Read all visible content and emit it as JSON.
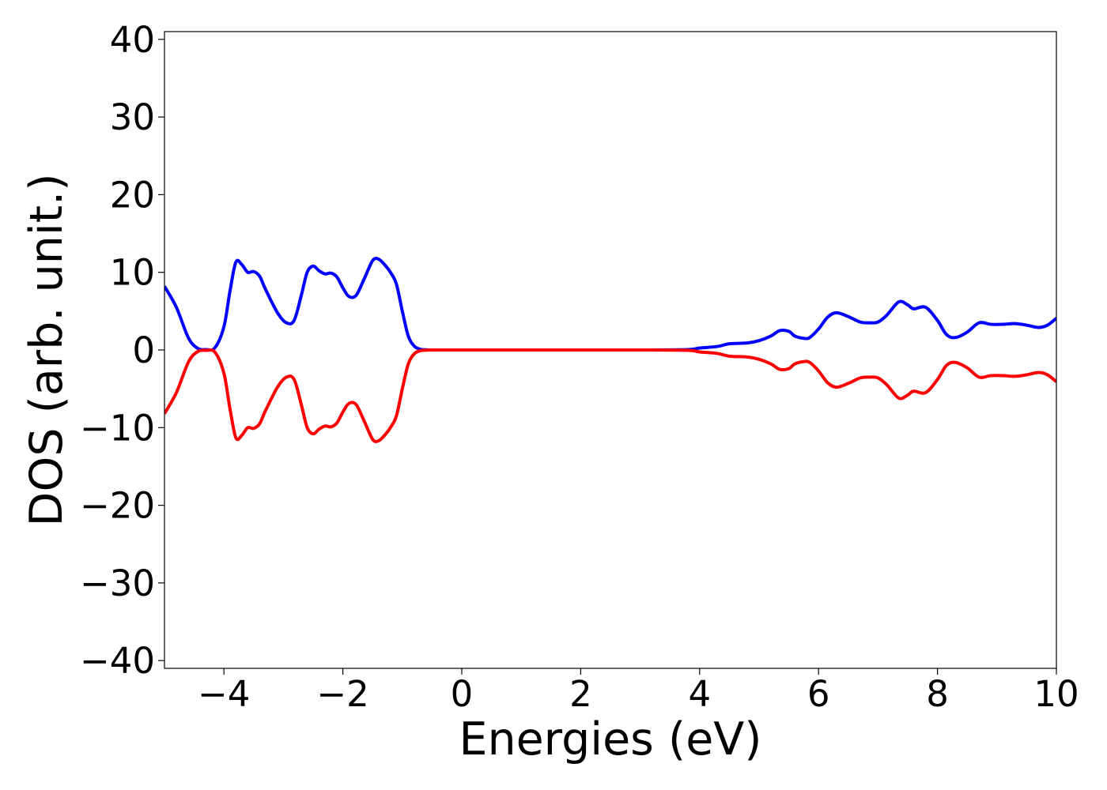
{
  "chart_data": {
    "type": "line",
    "title": "",
    "xlabel": "Energies (eV)",
    "ylabel": "DOS (arb. unit.)",
    "xlim": [
      -5,
      10
    ],
    "ylim": [
      -41,
      41
    ],
    "xticks": [
      -4,
      -2,
      0,
      2,
      4,
      6,
      8,
      10
    ],
    "xtick_labels": [
      "−4",
      "−2",
      "0",
      "2",
      "4",
      "6",
      "8",
      "10"
    ],
    "yticks": [
      -40,
      -30,
      -20,
      -10,
      0,
      10,
      20,
      30,
      40
    ],
    "ytick_labels": [
      "−40",
      "−30",
      "−20",
      "−10",
      "0",
      "10",
      "20",
      "30",
      "40"
    ],
    "grid": false,
    "series": [
      {
        "color": "#0000ff",
        "x": [
          -5,
          -4.8,
          -4.6,
          -4.45,
          -4.3,
          -4.15,
          -4.0,
          -3.9,
          -3.8,
          -3.7,
          -3.6,
          -3.5,
          -3.4,
          -3.3,
          -3.1,
          -2.95,
          -2.82,
          -2.7,
          -2.6,
          -2.5,
          -2.4,
          -2.3,
          -2.2,
          -2.1,
          -2.0,
          -1.9,
          -1.78,
          -1.65,
          -1.5,
          -1.4,
          -1.3,
          -1.2,
          -1.1,
          -1.0,
          -0.9,
          -0.8,
          -0.7,
          -0.6,
          -0.5,
          0,
          1,
          2,
          3,
          3.8,
          4.0,
          4.3,
          4.5,
          4.8,
          5.0,
          5.2,
          5.35,
          5.5,
          5.6,
          5.75,
          5.85,
          6.0,
          6.15,
          6.3,
          6.5,
          6.7,
          6.85,
          7.0,
          7.15,
          7.35,
          7.5,
          7.6,
          7.8,
          8.0,
          8.15,
          8.3,
          8.5,
          8.7,
          8.9,
          9.1,
          9.3,
          9.5,
          9.7,
          9.85,
          10.0
        ],
        "values": [
          8.2,
          5.5,
          1.6,
          0.25,
          0.05,
          0.3,
          3.0,
          7.5,
          11.3,
          11.0,
          10.0,
          10.1,
          9.5,
          7.8,
          4.8,
          3.5,
          3.8,
          7.0,
          10.0,
          10.8,
          10.2,
          9.8,
          9.9,
          9.4,
          8.0,
          6.9,
          7.0,
          9.0,
          11.5,
          11.7,
          11.0,
          10.0,
          8.5,
          5.0,
          1.8,
          0.5,
          0.1,
          0.03,
          0,
          0,
          0,
          0,
          0,
          0.05,
          0.25,
          0.45,
          0.8,
          0.9,
          1.2,
          1.8,
          2.5,
          2.4,
          1.8,
          1.5,
          1.6,
          2.7,
          4.2,
          4.8,
          4.3,
          3.6,
          3.5,
          3.6,
          4.5,
          6.2,
          5.8,
          5.3,
          5.5,
          3.8,
          2.0,
          1.6,
          2.3,
          3.5,
          3.3,
          3.3,
          3.4,
          3.2,
          2.9,
          3.2,
          4.1
        ]
      },
      {
        "color": "#ff0000",
        "x": [
          -5,
          -4.8,
          -4.6,
          -4.45,
          -4.3,
          -4.15,
          -4.0,
          -3.9,
          -3.8,
          -3.7,
          -3.6,
          -3.5,
          -3.4,
          -3.3,
          -3.1,
          -2.95,
          -2.82,
          -2.7,
          -2.6,
          -2.5,
          -2.4,
          -2.3,
          -2.2,
          -2.1,
          -2.0,
          -1.9,
          -1.78,
          -1.65,
          -1.5,
          -1.4,
          -1.3,
          -1.2,
          -1.1,
          -1.0,
          -0.9,
          -0.8,
          -0.7,
          -0.6,
          -0.5,
          0,
          1,
          2,
          3,
          3.8,
          4.0,
          4.3,
          4.5,
          4.8,
          5.0,
          5.2,
          5.35,
          5.5,
          5.6,
          5.75,
          5.85,
          6.0,
          6.15,
          6.3,
          6.5,
          6.7,
          6.85,
          7.0,
          7.15,
          7.35,
          7.5,
          7.6,
          7.8,
          8.0,
          8.15,
          8.3,
          8.5,
          8.7,
          8.9,
          9.1,
          9.3,
          9.5,
          9.7,
          9.85,
          10.0
        ],
        "values": [
          -8.2,
          -5.5,
          -1.6,
          -0.25,
          -0.05,
          -0.3,
          -3.0,
          -7.5,
          -11.3,
          -11.0,
          -10.0,
          -10.1,
          -9.5,
          -7.8,
          -4.8,
          -3.5,
          -3.8,
          -7.0,
          -10.0,
          -10.8,
          -10.2,
          -9.8,
          -9.9,
          -9.4,
          -8.0,
          -6.9,
          -7.0,
          -9.0,
          -11.5,
          -11.7,
          -11.0,
          -10.0,
          -8.5,
          -5.0,
          -1.8,
          -0.5,
          -0.1,
          -0.03,
          0,
          0,
          0,
          0,
          0,
          -0.05,
          -0.25,
          -0.45,
          -0.8,
          -0.9,
          -1.2,
          -1.8,
          -2.5,
          -2.4,
          -1.8,
          -1.5,
          -1.6,
          -2.7,
          -4.2,
          -4.8,
          -4.3,
          -3.6,
          -3.5,
          -3.6,
          -4.5,
          -6.2,
          -5.8,
          -5.3,
          -5.5,
          -3.8,
          -2.0,
          -1.6,
          -2.3,
          -3.5,
          -3.3,
          -3.3,
          -3.4,
          -3.2,
          -2.9,
          -3.2,
          -4.1
        ]
      }
    ]
  }
}
